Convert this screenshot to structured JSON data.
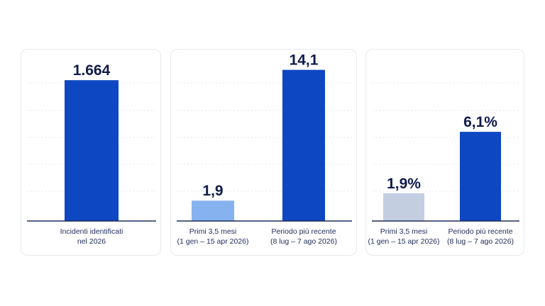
{
  "colors": {
    "primary": "#0d47c2",
    "light_blue": "#86b3f0",
    "light_gray_blue": "#c3cfe0",
    "text_dark": "#0f1b4d"
  },
  "chart_data": [
    {
      "type": "bar",
      "categories": [
        [
          "Incidenti identificati",
          "nel 2026"
        ]
      ],
      "values": [
        1664
      ],
      "value_labels": [
        "1.664"
      ],
      "bar_colors": [
        "#0d47c2"
      ],
      "ylim": [
        0,
        1900
      ],
      "grid": true
    },
    {
      "type": "bar",
      "categories": [
        [
          "Primi 3,5 mesi",
          "(1 gen – 15 apr 2026)"
        ],
        [
          "Periodo più recente",
          "(8 lug – 7 ago 2026)"
        ]
      ],
      "values": [
        1.9,
        14.1
      ],
      "value_labels": [
        "1,9",
        "14,1"
      ],
      "bar_colors": [
        "#86b3f0",
        "#0d47c2"
      ],
      "ylim": [
        0,
        15
      ],
      "grid": true
    },
    {
      "type": "bar",
      "categories": [
        [
          "Primi 3,5 mesi",
          "(1 gen – 15 apr 2026)"
        ],
        [
          "Periodo più recente",
          "(8 lug – 7 ago 2026)"
        ]
      ],
      "values": [
        1.9,
        6.1
      ],
      "value_labels": [
        "1,9%",
        "6,1%"
      ],
      "bar_colors": [
        "#c3cfe0",
        "#0d47c2"
      ],
      "ylim": [
        0,
        11
      ],
      "grid": true
    }
  ]
}
